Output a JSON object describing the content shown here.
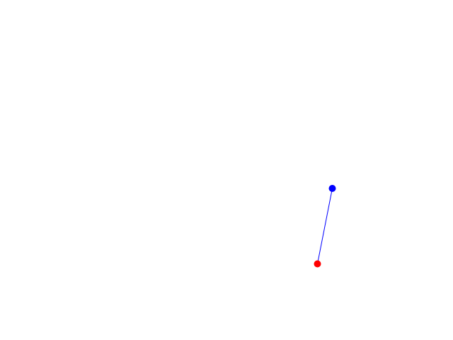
{
  "scene": {
    "background": "#ffffff",
    "line_color": "#0000ff",
    "points": [
      {
        "name": "blue-point",
        "color": "#0000ff"
      },
      {
        "name": "red-point",
        "color": "#ff0000"
      }
    ]
  }
}
